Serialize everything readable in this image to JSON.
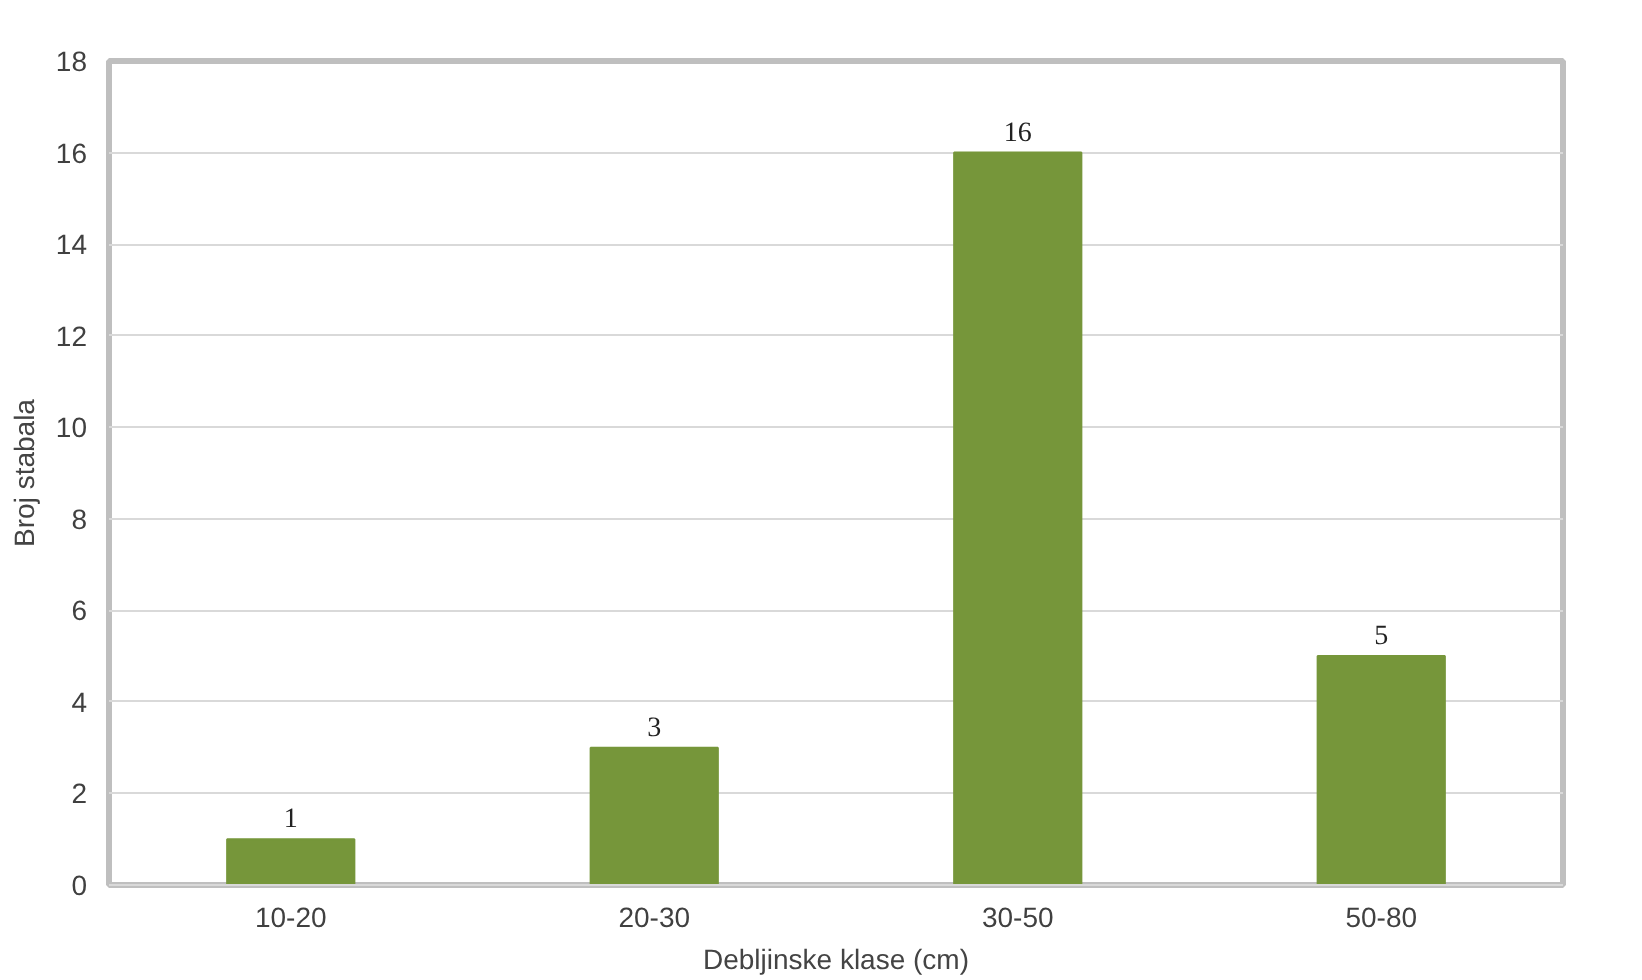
{
  "chart_data": {
    "type": "bar",
    "xlabel": "Debljinske klase (cm)",
    "ylabel": "Broj stabala",
    "categories": [
      "10-20",
      "20-30",
      "30-50",
      "50-80"
    ],
    "values": [
      1,
      3,
      16,
      5
    ],
    "color": "#76963a",
    "ylim": [
      0,
      18
    ],
    "yticks": [
      0,
      2,
      4,
      6,
      8,
      10,
      12,
      14,
      16,
      18
    ],
    "grid": "y",
    "data_labels": true
  }
}
